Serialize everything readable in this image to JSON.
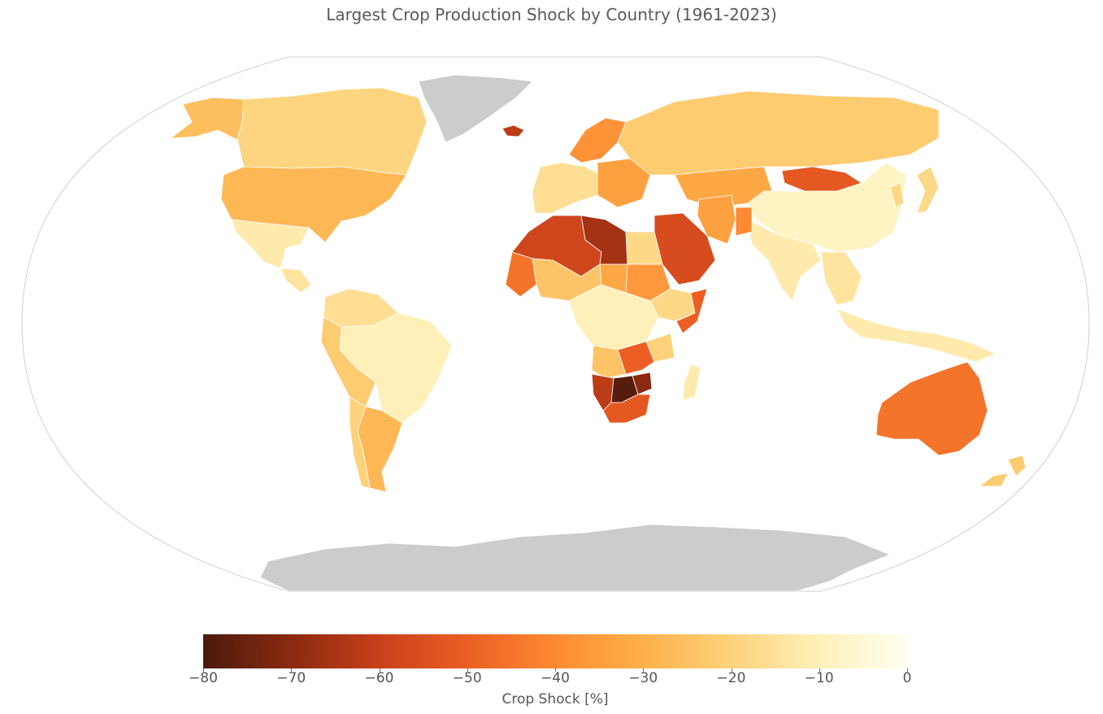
{
  "title": "Largest Crop Production Shock by Country (1961-2023)",
  "colorbar": {
    "label": "Crop Shock [%]",
    "ticks": [
      "−80",
      "−70",
      "−60",
      "−50",
      "−40",
      "−30",
      "−20",
      "−10",
      "0"
    ],
    "min": -80,
    "max": 0,
    "stops": [
      "#4a1a0b",
      "#8b2a10",
      "#c8401a",
      "#ec5e24",
      "#fd8a32",
      "#fdb04a",
      "#fdd27a",
      "#fef0b8",
      "#fffff0"
    ]
  },
  "map": {
    "projection": "Robinson",
    "no_data_color": "#cccccc",
    "no_data_regions": [
      "Greenland",
      "Antarctica"
    ]
  },
  "regions": [
    {
      "name": "Alaska",
      "shock": -26
    },
    {
      "name": "Canada",
      "shock": -19
    },
    {
      "name": "United States",
      "shock": -28
    },
    {
      "name": "Mexico",
      "shock": -12
    },
    {
      "name": "Central America",
      "shock": -14
    },
    {
      "name": "Colombia / Venezuela",
      "shock": -16
    },
    {
      "name": "Brazil",
      "shock": -10
    },
    {
      "name": "Peru / Bolivia",
      "shock": -22
    },
    {
      "name": "Argentina",
      "shock": -28
    },
    {
      "name": "Chile",
      "shock": -20
    },
    {
      "name": "Iceland",
      "shock": -62
    },
    {
      "name": "Scandinavia",
      "shock": -38
    },
    {
      "name": "Western Europe",
      "shock": -16
    },
    {
      "name": "Eastern Europe",
      "shock": -34
    },
    {
      "name": "Russia",
      "shock": -22
    },
    {
      "name": "Kazakhstan",
      "shock": -32
    },
    {
      "name": "Mongolia",
      "shock": -52
    },
    {
      "name": "China",
      "shock": -8
    },
    {
      "name": "Korea / Japan",
      "shock": -18
    },
    {
      "name": "India",
      "shock": -12
    },
    {
      "name": "Southeast Asia",
      "shock": -14
    },
    {
      "name": "Indonesia",
      "shock": -12
    },
    {
      "name": "Australia",
      "shock": -45
    },
    {
      "name": "New Zealand",
      "shock": -22
    },
    {
      "name": "Morocco / Algeria",
      "shock": -58
    },
    {
      "name": "Libya",
      "shock": -66
    },
    {
      "name": "Egypt",
      "shock": -18
    },
    {
      "name": "Mauritania / Sahel West",
      "shock": -45
    },
    {
      "name": "Mali / Niger",
      "shock": -24
    },
    {
      "name": "Chad",
      "shock": -32
    },
    {
      "name": "Sudan",
      "shock": -36
    },
    {
      "name": "Ethiopia",
      "shock": -18
    },
    {
      "name": "Somalia",
      "shock": -50
    },
    {
      "name": "Arabian Peninsula",
      "shock": -56
    },
    {
      "name": "Iran",
      "shock": -34
    },
    {
      "name": "Afghanistan",
      "shock": -40
    },
    {
      "name": "Central Africa",
      "shock": -10
    },
    {
      "name": "Angola",
      "shock": -24
    },
    {
      "name": "Tanzania",
      "shock": -20
    },
    {
      "name": "Zambia / Malawi",
      "shock": -50
    },
    {
      "name": "Namibia",
      "shock": -62
    },
    {
      "name": "Botswana",
      "shock": -78
    },
    {
      "name": "Zimbabwe",
      "shock": -70
    },
    {
      "name": "South Africa",
      "shock": -52
    },
    {
      "name": "Madagascar",
      "shock": -12
    }
  ]
}
